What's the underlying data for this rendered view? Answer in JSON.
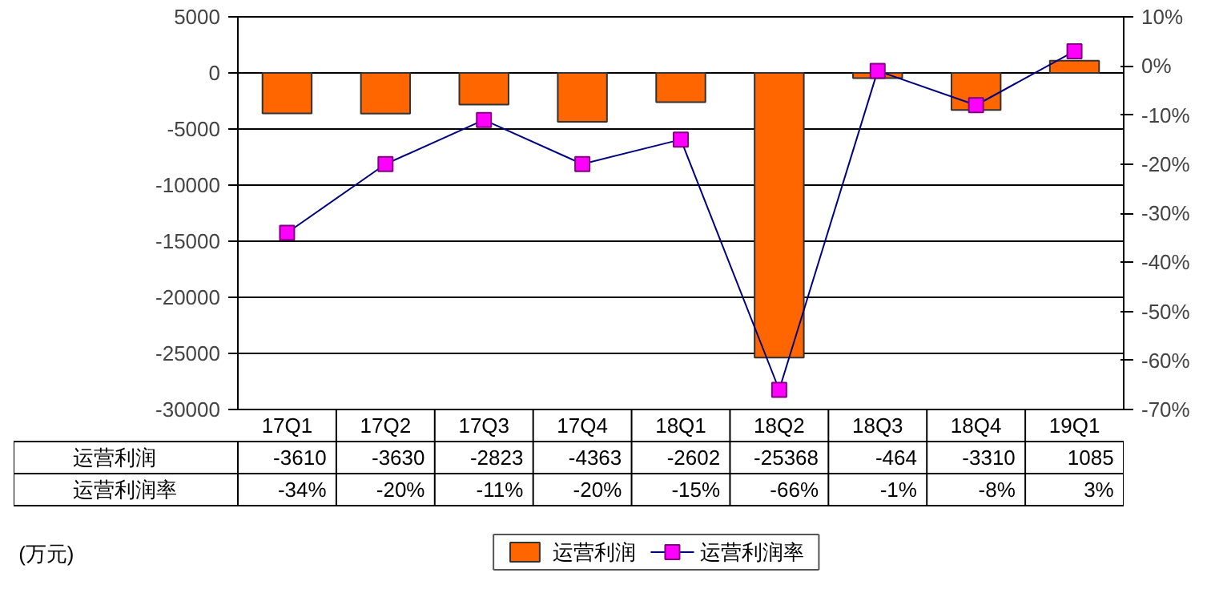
{
  "chart_data": {
    "type": "bar",
    "categories": [
      "17Q1",
      "17Q2",
      "17Q3",
      "17Q4",
      "18Q1",
      "18Q2",
      "18Q3",
      "18Q4",
      "19Q1"
    ],
    "series": [
      {
        "name": "运营利润",
        "color": "#ff6600",
        "values": [
          -3610,
          -3630,
          -2823,
          -4363,
          -2602,
          -25368,
          -464,
          -3310,
          1085
        ],
        "value_labels": [
          "-3610",
          "-3630",
          "-2823",
          "-4363",
          "-2602",
          "-25368",
          "-464",
          "-3310",
          "1085"
        ]
      },
      {
        "name": "运营利润率",
        "type": "line",
        "axis": "y2",
        "color": "#000080",
        "marker": "square",
        "values": [
          -34,
          -20,
          -11,
          -20,
          -15,
          -66,
          -1,
          -8,
          3
        ],
        "value_labels": [
          "-34%",
          "-20%",
          "-11%",
          "-20%",
          "-15%",
          "-66%",
          "-1%",
          "-8%",
          "3%"
        ]
      }
    ],
    "ylim": [
      -30000,
      5000
    ],
    "yticks": [
      -30000,
      -25000,
      -20000,
      -15000,
      -10000,
      -5000,
      0,
      5000
    ],
    "y2lim": [
      -70,
      10
    ],
    "y2ticks": [
      {
        "value": -70,
        "label": "-70%"
      },
      {
        "value": -60,
        "label": "-60%"
      },
      {
        "value": -50,
        "label": "-50%"
      },
      {
        "value": -40,
        "label": "-40%"
      },
      {
        "value": -30,
        "label": "-30%"
      },
      {
        "value": -20,
        "label": "-20%"
      },
      {
        "value": -10,
        "label": "-10%"
      },
      {
        "value": 0,
        "label": "0%"
      },
      {
        "value": 10,
        "label": "10%"
      }
    ],
    "grid": "y",
    "legend": "bottom",
    "annotations": [
      "(万元)"
    ]
  }
}
